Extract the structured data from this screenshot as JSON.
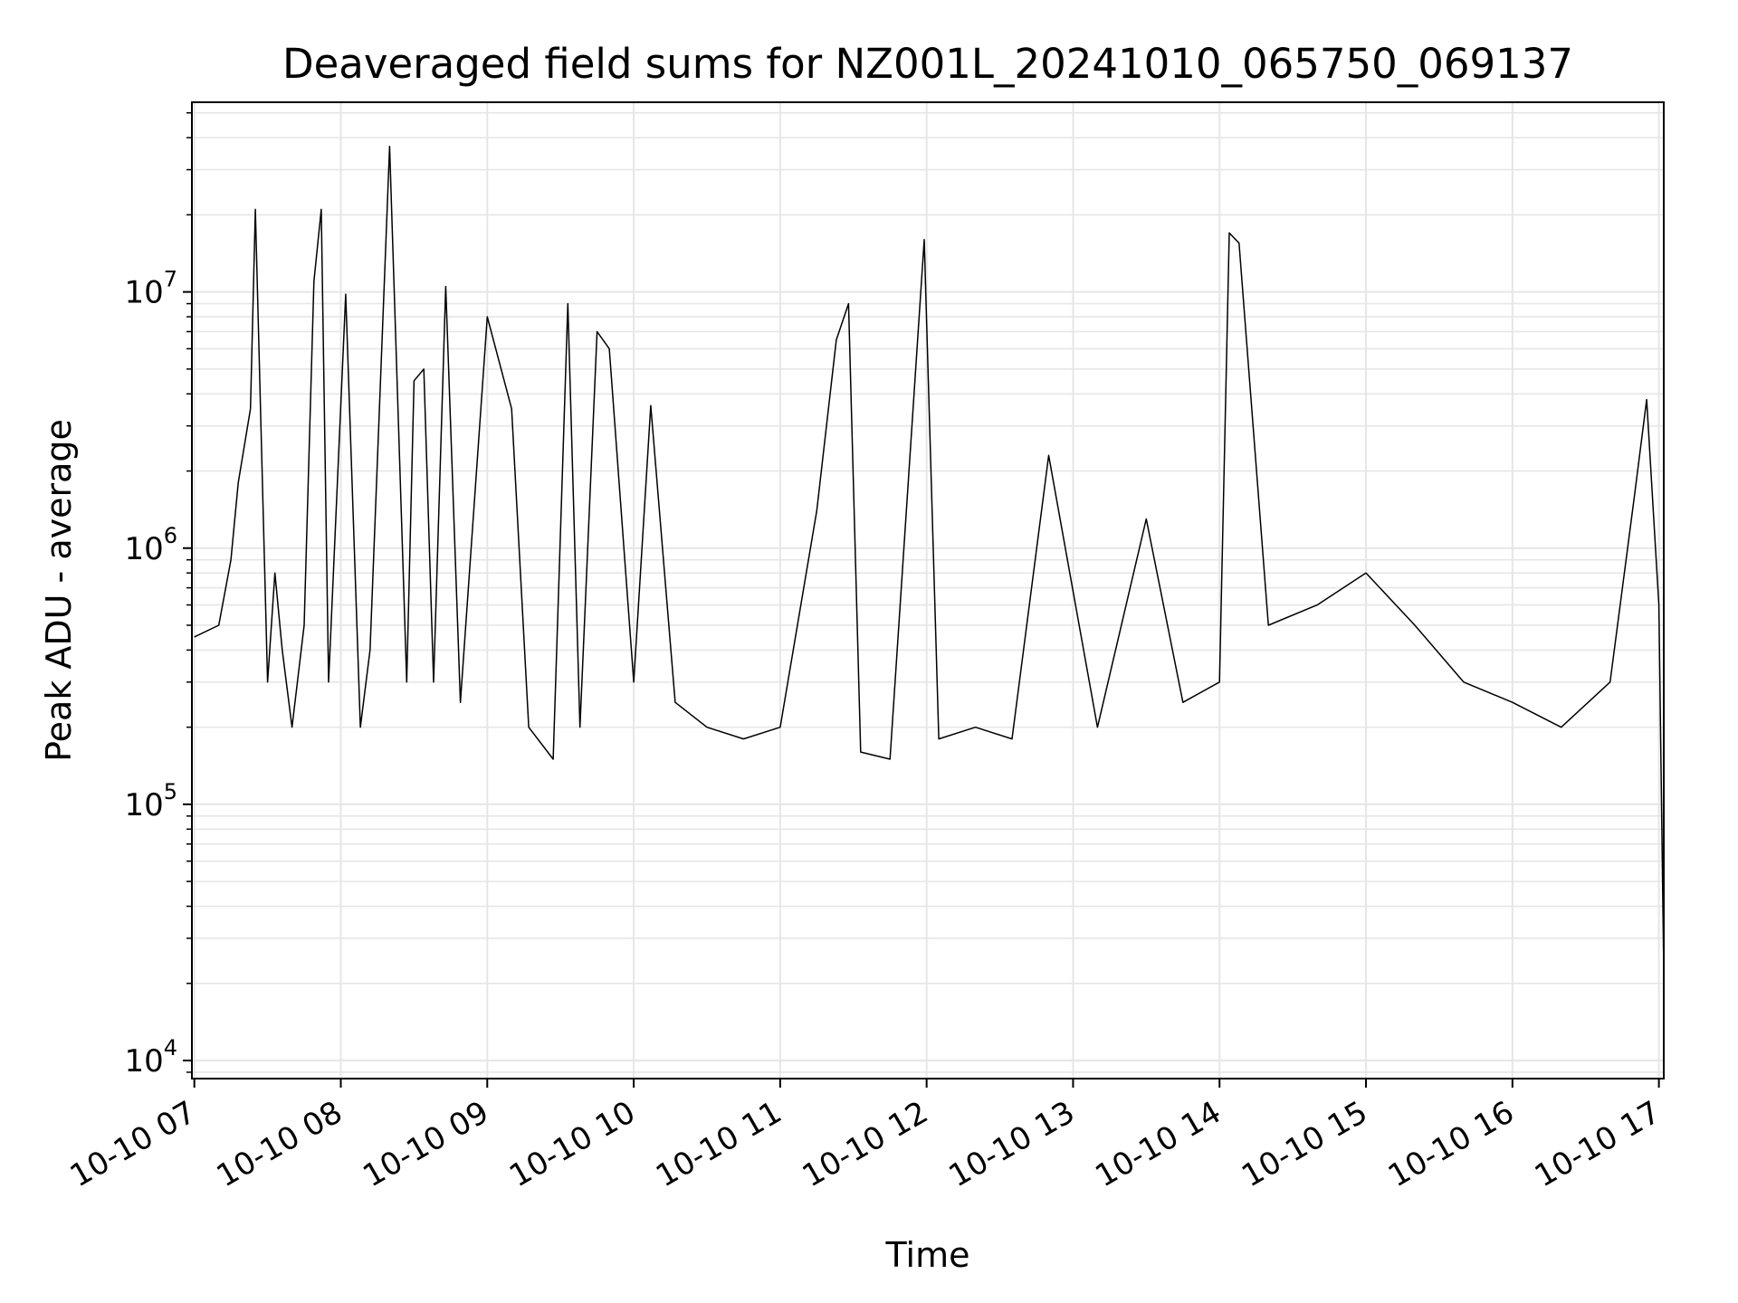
{
  "chart_data": {
    "type": "line",
    "title": "Deaveraged field sums for NZ001L_20241010_065750_069137",
    "xlabel": "Time",
    "ylabel": "Peak ADU - average",
    "y_scale": "log",
    "ylim": [
      8500,
      55000000
    ],
    "xlim": [
      "2024-10-10 06:59",
      "2024-10-10 17:02"
    ],
    "x_ticks": [
      "10-10 07",
      "10-10 08",
      "10-10 09",
      "10-10 10",
      "10-10 11",
      "10-10 12",
      "10-10 13",
      "10-10 14",
      "10-10 15",
      "10-10 16",
      "10-10 17"
    ],
    "y_ticks": [
      {
        "base": "10",
        "exp": "4"
      },
      {
        "base": "10",
        "exp": "5"
      },
      {
        "base": "10",
        "exp": "6"
      },
      {
        "base": "10",
        "exp": "7"
      }
    ],
    "grid": true,
    "line_color": "#000000",
    "grid_color": "#e6e6e6",
    "series": [
      {
        "x": [
          "2024-10-10 07:00",
          "2024-10-10 07:10",
          "2024-10-10 07:15",
          "2024-10-10 07:18",
          "2024-10-10 07:23",
          "2024-10-10 07:25",
          "2024-10-10 07:30",
          "2024-10-10 07:33",
          "2024-10-10 07:36",
          "2024-10-10 07:40",
          "2024-10-10 07:45",
          "2024-10-10 07:49",
          "2024-10-10 07:52",
          "2024-10-10 07:55",
          "2024-10-10 08:02",
          "2024-10-10 08:08",
          "2024-10-10 08:12",
          "2024-10-10 08:20",
          "2024-10-10 08:27",
          "2024-10-10 08:30",
          "2024-10-10 08:34",
          "2024-10-10 08:38",
          "2024-10-10 08:43",
          "2024-10-10 08:49",
          "2024-10-10 09:00",
          "2024-10-10 09:10",
          "2024-10-10 09:17",
          "2024-10-10 09:27",
          "2024-10-10 09:33",
          "2024-10-10 09:38",
          "2024-10-10 09:45",
          "2024-10-10 09:50",
          "2024-10-10 10:00",
          "2024-10-10 10:07",
          "2024-10-10 10:17",
          "2024-10-10 10:30",
          "2024-10-10 10:45",
          "2024-10-10 11:00",
          "2024-10-10 11:15",
          "2024-10-10 11:23",
          "2024-10-10 11:28",
          "2024-10-10 11:33",
          "2024-10-10 11:45",
          "2024-10-10 11:59",
          "2024-10-10 12:05",
          "2024-10-10 12:20",
          "2024-10-10 12:35",
          "2024-10-10 12:50",
          "2024-10-10 13:10",
          "2024-10-10 13:30",
          "2024-10-10 13:45",
          "2024-10-10 14:00",
          "2024-10-10 14:04",
          "2024-10-10 14:08",
          "2024-10-10 14:20",
          "2024-10-10 14:40",
          "2024-10-10 15:00",
          "2024-10-10 15:20",
          "2024-10-10 15:40",
          "2024-10-10 16:00",
          "2024-10-10 16:20",
          "2024-10-10 16:40",
          "2024-10-10 16:50",
          "2024-10-10 16:55",
          "2024-10-10 17:00",
          "2024-10-10 17:02"
        ],
        "values": [
          450000,
          500000,
          900000,
          1800000,
          3500000,
          21000000,
          300000,
          800000,
          400000,
          200000,
          500000,
          11000000,
          21000000,
          300000,
          9800000,
          200000,
          400000,
          37000000,
          300000,
          4500000,
          5000000,
          300000,
          10500000,
          250000,
          8000000,
          3500000,
          200000,
          150000,
          9000000,
          200000,
          7000000,
          6000000,
          300000,
          3600000,
          250000,
          200000,
          180000,
          200000,
          1400000,
          6500000,
          9000000,
          160000,
          150000,
          16000000,
          180000,
          200000,
          180000,
          2300000,
          200000,
          1300000,
          250000,
          300000,
          17000000,
          15500000,
          500000,
          600000,
          800000,
          500000,
          300000,
          250000,
          200000,
          300000,
          1600000,
          3800000,
          600000,
          22000
        ]
      }
    ]
  }
}
